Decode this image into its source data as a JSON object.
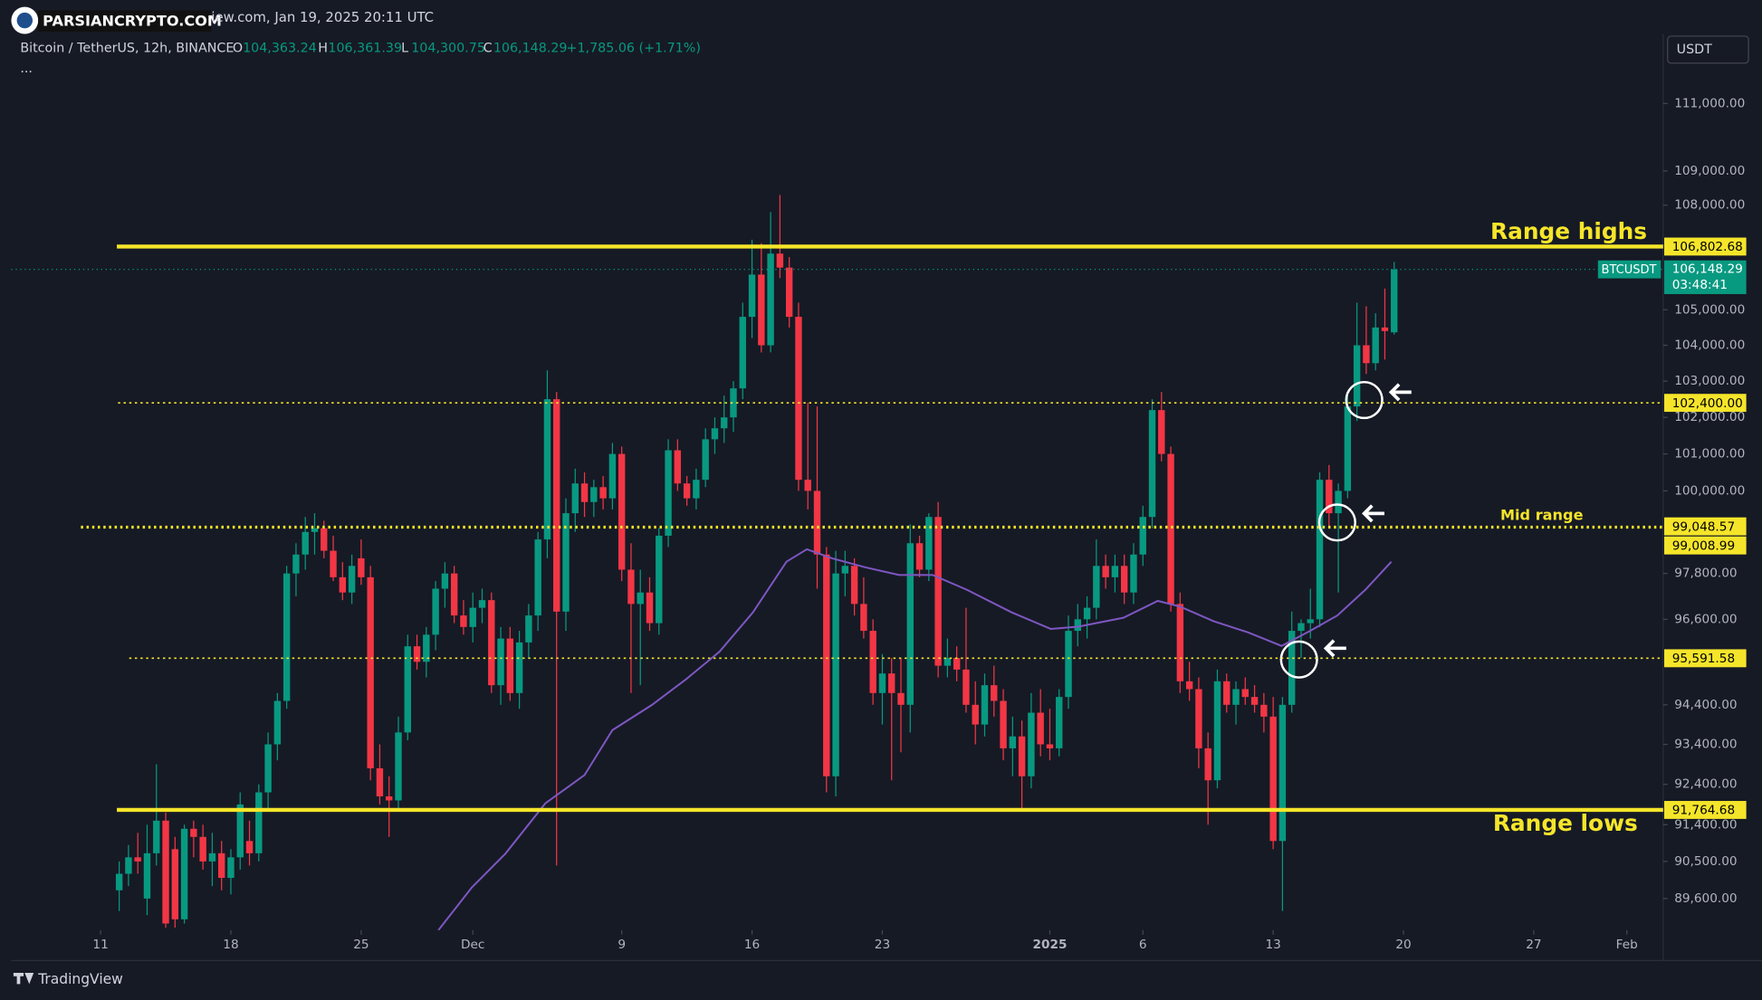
{
  "header": {
    "source": "iew.com, Jan 19, 2025 20:11 UTC",
    "watermark": "PARSIANCRYPTO.COM",
    "symbol": "Bitcoin / TetherUS, 12h, BINANCE",
    "o_label": "O",
    "o": "104,363.24",
    "h_label": "H",
    "h": "106,361.39",
    "l_label": "L",
    "l": "104,300.75",
    "c_label": "C",
    "c": "106,148.29",
    "change": "+1,785.06 (+1.71%)",
    "more": "...",
    "currency": "USDT",
    "brand": "TradingView"
  },
  "chart_data": {
    "type": "candlestick",
    "log": true,
    "up_color": "#089981",
    "down_color": "#f23645",
    "xlim": [
      -11.6,
      165.9
    ],
    "ylim": [
      88840,
      113100
    ],
    "xticks": [
      {
        "value": -2,
        "label": "11"
      },
      {
        "value": 12,
        "label": "18"
      },
      {
        "value": 26,
        "label": "25"
      },
      {
        "value": 38,
        "label": "Dec"
      },
      {
        "value": 54,
        "label": "9"
      },
      {
        "value": 68,
        "label": "16"
      },
      {
        "value": 82,
        "label": "23"
      },
      {
        "value": 100,
        "label": "2025"
      },
      {
        "value": 110,
        "label": "6"
      },
      {
        "value": 124,
        "label": "13"
      },
      {
        "value": 138,
        "label": "20"
      },
      {
        "value": 152,
        "label": "27"
      },
      {
        "value": 162,
        "label": "Feb"
      }
    ],
    "yticks": [
      {
        "value": 111000,
        "label": "111,000.00"
      },
      {
        "value": 109000,
        "label": "109,000.00"
      },
      {
        "value": 108000,
        "label": "108,000.00"
      },
      {
        "value": 105000,
        "label": "105,000.00"
      },
      {
        "value": 104000,
        "label": "104,000.00"
      },
      {
        "value": 103000,
        "label": "103,000.00"
      },
      {
        "value": 102000,
        "label": "102,000.00"
      },
      {
        "value": 101000,
        "label": "101,000.00"
      },
      {
        "value": 100000,
        "label": "100,000.00"
      },
      {
        "value": 97800,
        "label": "97,800.00"
      },
      {
        "value": 96600,
        "label": "96,600.00"
      },
      {
        "value": 94400,
        "label": "94,400.00"
      },
      {
        "value": 93400,
        "label": "93,400.00"
      },
      {
        "value": 92400,
        "label": "92,400.00"
      },
      {
        "value": 91400,
        "label": "91,400.00"
      },
      {
        "value": 90500,
        "label": "90,500.00"
      },
      {
        "value": 89600,
        "label": "89,600.00"
      }
    ],
    "candles": [
      [
        89800,
        90500,
        89300,
        90200
      ],
      [
        90200,
        90900,
        89900,
        90600
      ],
      [
        90600,
        91200,
        90200,
        90500
      ],
      [
        89600,
        91400,
        89200,
        90700
      ],
      [
        90700,
        92900,
        90400,
        91500
      ],
      [
        91500,
        91700,
        88900,
        89000
      ],
      [
        90800,
        91100,
        88900,
        89100
      ],
      [
        89100,
        91400,
        89000,
        91300
      ],
      [
        91300,
        91500,
        90600,
        91100
      ],
      [
        91100,
        91400,
        90300,
        90500
      ],
      [
        90500,
        91200,
        89900,
        90700
      ],
      [
        90700,
        91000,
        89800,
        90100
      ],
      [
        90100,
        90800,
        89700,
        90600
      ],
      [
        90600,
        92200,
        90300,
        91900
      ],
      [
        91000,
        91500,
        90400,
        90700
      ],
      [
        90700,
        92400,
        90500,
        92200
      ],
      [
        92200,
        93700,
        91800,
        93400
      ],
      [
        93400,
        94700,
        93000,
        94500
      ],
      [
        94500,
        98000,
        94300,
        97800
      ],
      [
        97800,
        98600,
        97200,
        98300
      ],
      [
        98300,
        99300,
        97900,
        98900
      ],
      [
        98900,
        99400,
        98300,
        99000
      ],
      [
        99000,
        99200,
        98200,
        98400
      ],
      [
        98400,
        98800,
        97600,
        97700
      ],
      [
        97700,
        98100,
        97100,
        97300
      ],
      [
        97300,
        98300,
        97000,
        98000
      ],
      [
        98200,
        98700,
        97500,
        97700
      ],
      [
        97700,
        98000,
        92500,
        92800
      ],
      [
        92800,
        93400,
        91900,
        92100
      ],
      [
        92100,
        92600,
        91100,
        92000
      ],
      [
        92000,
        94100,
        91800,
        93700
      ],
      [
        93700,
        96200,
        93500,
        95900
      ],
      [
        95900,
        96200,
        95300,
        95500
      ],
      [
        95500,
        96400,
        95100,
        96200
      ],
      [
        96200,
        97600,
        95800,
        97400
      ],
      [
        97400,
        98100,
        96900,
        97800
      ],
      [
        97800,
        98000,
        96500,
        96700
      ],
      [
        96700,
        97100,
        96200,
        96400
      ],
      [
        96400,
        97300,
        96000,
        96900
      ],
      [
        96900,
        97400,
        96500,
        97100
      ],
      [
        97100,
        97300,
        94700,
        94900
      ],
      [
        94900,
        96400,
        94400,
        96100
      ],
      [
        96100,
        96400,
        94500,
        94700
      ],
      [
        94700,
        96300,
        94300,
        96000
      ],
      [
        96000,
        97000,
        95600,
        96700
      ],
      [
        96700,
        98900,
        96300,
        98700
      ],
      [
        98700,
        103300,
        98200,
        102500
      ],
      [
        102500,
        102700,
        90400,
        96800
      ],
      [
        96800,
        99800,
        96300,
        99400
      ],
      [
        99400,
        100600,
        98900,
        100200
      ],
      [
        100200,
        100500,
        99300,
        99700
      ],
      [
        99700,
        100300,
        99300,
        100100
      ],
      [
        100100,
        100400,
        99500,
        99800
      ],
      [
        99800,
        101300,
        99500,
        101000
      ],
      [
        101000,
        101200,
        97600,
        97900
      ],
      [
        97900,
        98600,
        94700,
        97000
      ],
      [
        97000,
        97900,
        94900,
        97300
      ],
      [
        97300,
        97700,
        96300,
        96500
      ],
      [
        96500,
        99000,
        96200,
        98800
      ],
      [
        98800,
        101400,
        98500,
        101100
      ],
      [
        101100,
        101400,
        100000,
        100200
      ],
      [
        100200,
        100400,
        99600,
        99800
      ],
      [
        99800,
        100600,
        99500,
        100300
      ],
      [
        100300,
        101700,
        100100,
        101400
      ],
      [
        101400,
        102000,
        101000,
        101700
      ],
      [
        101700,
        102600,
        101300,
        102000
      ],
      [
        102000,
        103000,
        101600,
        102800
      ],
      [
        102800,
        105200,
        102500,
        104800
      ],
      [
        104800,
        107000,
        104200,
        106000
      ],
      [
        106000,
        106900,
        103800,
        104000
      ],
      [
        104000,
        107800,
        103800,
        106600
      ],
      [
        106600,
        108300,
        105900,
        106200
      ],
      [
        106200,
        106500,
        104500,
        104800
      ],
      [
        104800,
        105200,
        100000,
        100300
      ],
      [
        100300,
        102400,
        99500,
        100000
      ],
      [
        100000,
        102300,
        97400,
        98300
      ],
      [
        98300,
        98500,
        92200,
        92600
      ],
      [
        92600,
        98400,
        92100,
        97800
      ],
      [
        97800,
        98400,
        97200,
        98000
      ],
      [
        98000,
        98200,
        96700,
        97000
      ],
      [
        97000,
        97700,
        96100,
        96300
      ],
      [
        96300,
        96600,
        94400,
        94700
      ],
      [
        94700,
        95700,
        93900,
        95200
      ],
      [
        95200,
        95600,
        92500,
        94700
      ],
      [
        94700,
        95600,
        93200,
        94400
      ],
      [
        94400,
        99100,
        93700,
        98600
      ],
      [
        98600,
        98800,
        97700,
        97900
      ],
      [
        97900,
        99400,
        97600,
        99300
      ],
      [
        99300,
        99700,
        95100,
        95400
      ],
      [
        95400,
        96100,
        95100,
        95600
      ],
      [
        95600,
        95900,
        95000,
        95300
      ],
      [
        95300,
        96900,
        94200,
        94400
      ],
      [
        94400,
        95000,
        93400,
        93900
      ],
      [
        93900,
        95200,
        93600,
        94900
      ],
      [
        94900,
        95400,
        94100,
        94500
      ],
      [
        94500,
        94800,
        93000,
        93300
      ],
      [
        93300,
        94100,
        92600,
        93600
      ],
      [
        93600,
        94000,
        91800,
        92600
      ],
      [
        92600,
        94700,
        92300,
        94200
      ],
      [
        94200,
        94800,
        93100,
        93400
      ],
      [
        93400,
        94300,
        93000,
        93300
      ],
      [
        93300,
        94800,
        93100,
        94600
      ],
      [
        94600,
        96700,
        94300,
        96300
      ],
      [
        96300,
        97000,
        95900,
        96600
      ],
      [
        96600,
        97200,
        96100,
        96900
      ],
      [
        96900,
        98700,
        96600,
        98000
      ],
      [
        98000,
        98300,
        97400,
        97700
      ],
      [
        97700,
        98300,
        97300,
        98000
      ],
      [
        98000,
        98300,
        97000,
        97300
      ],
      [
        97300,
        98600,
        97000,
        98300
      ],
      [
        98300,
        99600,
        98000,
        99300
      ],
      [
        99300,
        102500,
        99000,
        102200
      ],
      [
        102200,
        102700,
        100800,
        101000
      ],
      [
        101000,
        101200,
        96800,
        97000
      ],
      [
        97000,
        97300,
        94700,
        95000
      ],
      [
        95000,
        95500,
        94500,
        94800
      ],
      [
        94800,
        95100,
        92800,
        93300
      ],
      [
        93300,
        93700,
        91400,
        92500
      ],
      [
        92500,
        95300,
        92300,
        95000
      ],
      [
        95000,
        95200,
        94200,
        94400
      ],
      [
        94400,
        95000,
        93900,
        94800
      ],
      [
        94800,
        95100,
        94400,
        94600
      ],
      [
        94600,
        94900,
        94200,
        94400
      ],
      [
        94400,
        94700,
        93700,
        94100
      ],
      [
        94100,
        94600,
        90800,
        91000
      ],
      [
        91000,
        94600,
        89300,
        94400
      ],
      [
        94400,
        96800,
        94200,
        96300
      ],
      [
        96300,
        96600,
        95600,
        96500
      ],
      [
        96500,
        97400,
        96100,
        96600
      ],
      [
        96600,
        100500,
        96400,
        100300
      ],
      [
        100300,
        100700,
        99000,
        99400
      ],
      [
        99400,
        100200,
        97300,
        100000
      ],
      [
        100000,
        102600,
        99800,
        102300
      ],
      [
        102300,
        105200,
        101900,
        104000
      ],
      [
        104000,
        105100,
        103200,
        103500
      ],
      [
        103500,
        104900,
        103300,
        104500
      ],
      [
        104500,
        105600,
        103600,
        104400
      ],
      [
        104363.24,
        106361.39,
        104300.75,
        106148.29
      ]
    ],
    "ma": {
      "color": "#7e57c2",
      "x": [
        34.3,
        37.9,
        41.5,
        45.8,
        50,
        53,
        57.2,
        60.9,
        64.5,
        68.1,
        71.7,
        73.9,
        76.6,
        80.2,
        83.8,
        87.4,
        91.1,
        95.9,
        100.1,
        103.1,
        107.9,
        111.6,
        114,
        117.6,
        121.3,
        124.9,
        127.9,
        130.9,
        133.9,
        136.7
      ],
      "values": [
        88840,
        89870,
        90690,
        91930,
        92630,
        93760,
        94390,
        95050,
        95760,
        96780,
        98110,
        98440,
        98200,
        97960,
        97760,
        97760,
        97370,
        96780,
        96350,
        96410,
        96640,
        97080,
        96930,
        96550,
        96260,
        95910,
        96290,
        96700,
        97370,
        98110
      ]
    },
    "level_color": "#f5e52a",
    "levels": [
      {
        "value": 106802.68,
        "label": "106,802.68",
        "style": "solid"
      },
      {
        "value": 102400,
        "label": "102,400.00",
        "style": "dotted"
      },
      {
        "value": 99048.57,
        "label": "99,048.57",
        "style": "dotted"
      },
      {
        "value": 99008.99,
        "label": "99,008.99",
        "style": "dotted"
      },
      {
        "value": 95591.58,
        "label": "95,591.58",
        "style": "dotted"
      },
      {
        "value": 91764.68,
        "label": "91,764.68",
        "style": "solid"
      }
    ],
    "last": {
      "value": 106148.29,
      "label": "106,148.29",
      "symbol": "BTCUSDT",
      "countdown": "03:48:41"
    },
    "annotations": [
      {
        "text": "Range highs"
      },
      {
        "text": "Mid range"
      },
      {
        "text": "Range lows"
      }
    ]
  }
}
